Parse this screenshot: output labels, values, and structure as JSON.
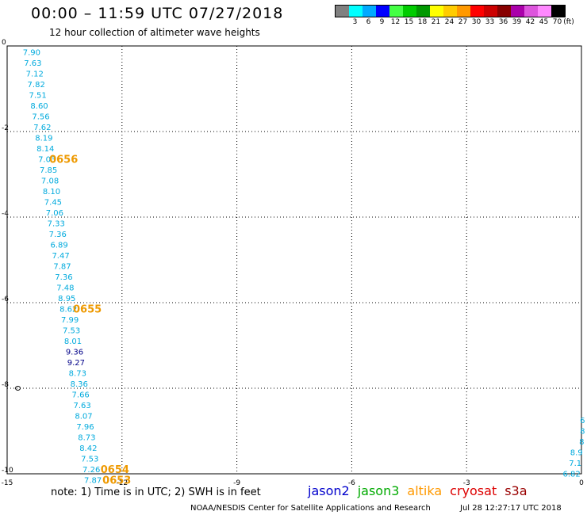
{
  "header": {
    "title": "00:00 – 11:59 UTC 07/27/2018",
    "subtitle": "12 hour collection of altimeter wave heights"
  },
  "legend": {
    "unit": "(ft)",
    "bins": [
      {
        "label": "",
        "color": "#808080"
      },
      {
        "label": "3",
        "color": "#00ffff"
      },
      {
        "label": "6",
        "color": "#00aaff"
      },
      {
        "label": "9",
        "color": "#0000ff"
      },
      {
        "label": "12",
        "color": "#44ff44"
      },
      {
        "label": "15",
        "color": "#00cc00"
      },
      {
        "label": "18",
        "color": "#009900"
      },
      {
        "label": "21",
        "color": "#ffff00"
      },
      {
        "label": "24",
        "color": "#ffcc00"
      },
      {
        "label": "27",
        "color": "#ff9900"
      },
      {
        "label": "30",
        "color": "#ff0000"
      },
      {
        "label": "33",
        "color": "#cc0000"
      },
      {
        "label": "36",
        "color": "#880000"
      },
      {
        "label": "39",
        "color": "#aa00aa"
      },
      {
        "label": "42",
        "color": "#dd55dd"
      },
      {
        "label": "45",
        "color": "#ff88ff"
      },
      {
        "label": "70",
        "color": "#000000"
      }
    ]
  },
  "map": {
    "lon_range": [
      -15,
      0
    ],
    "lat_range": [
      -10,
      0
    ],
    "x_ticks": [
      -15,
      -12,
      -9,
      -6,
      -3,
      0
    ],
    "y_ticks": [
      0,
      -2,
      -4,
      -6,
      -8,
      -10
    ],
    "x_tick_labels": [
      "-15",
      "-12",
      "-9",
      "-6",
      "-3",
      "0"
    ],
    "y_tick_labels": [
      "0",
      "-2",
      "-4",
      "-6",
      "-8",
      "-10"
    ],
    "grid": "dotted",
    "cyan": "#00aadd",
    "blue": "#000088",
    "orange": "#ee9900",
    "track_west": [
      {
        "lon": -14.36,
        "lat": -0.14,
        "label": "7.90",
        "color": "cyan"
      },
      {
        "lon": -14.33,
        "lat": -0.39,
        "label": "7.63",
        "color": "cyan"
      },
      {
        "lon": -14.28,
        "lat": -0.64,
        "label": "7.12",
        "color": "cyan"
      },
      {
        "lon": -14.24,
        "lat": -0.89,
        "label": "7.82",
        "color": "cyan"
      },
      {
        "lon": -14.2,
        "lat": -1.14,
        "label": "7.51",
        "color": "cyan"
      },
      {
        "lon": -14.16,
        "lat": -1.39,
        "label": "8.60",
        "color": "cyan"
      },
      {
        "lon": -14.12,
        "lat": -1.64,
        "label": "7.56",
        "color": "cyan"
      },
      {
        "lon": -14.08,
        "lat": -1.89,
        "label": "7.62",
        "color": "cyan"
      },
      {
        "lon": -14.04,
        "lat": -2.14,
        "label": "8.19",
        "color": "cyan"
      },
      {
        "lon": -14.0,
        "lat": -2.39,
        "label": "8.14",
        "color": "cyan"
      },
      {
        "lon": -13.96,
        "lat": -2.64,
        "label": "7.03",
        "color": "cyan"
      },
      {
        "lon": -13.92,
        "lat": -2.89,
        "label": "7.85",
        "color": "cyan"
      },
      {
        "lon": -13.88,
        "lat": -3.14,
        "label": "7.08",
        "color": "cyan"
      },
      {
        "lon": -13.84,
        "lat": -3.39,
        "label": "8.10",
        "color": "cyan"
      },
      {
        "lon": -13.8,
        "lat": -3.64,
        "label": "7.45",
        "color": "cyan"
      },
      {
        "lon": -13.76,
        "lat": -3.89,
        "label": "7.06",
        "color": "cyan"
      },
      {
        "lon": -13.72,
        "lat": -4.14,
        "label": "7.33",
        "color": "cyan"
      },
      {
        "lon": -13.68,
        "lat": -4.39,
        "label": "7.36",
        "color": "cyan"
      },
      {
        "lon": -13.64,
        "lat": -4.64,
        "label": "6.89",
        "color": "cyan"
      },
      {
        "lon": -13.6,
        "lat": -4.89,
        "label": "7.47",
        "color": "cyan"
      },
      {
        "lon": -13.56,
        "lat": -5.14,
        "label": "7.87",
        "color": "cyan"
      },
      {
        "lon": -13.52,
        "lat": -5.39,
        "label": "7.36",
        "color": "cyan"
      },
      {
        "lon": -13.48,
        "lat": -5.64,
        "label": "7.48",
        "color": "cyan"
      },
      {
        "lon": -13.44,
        "lat": -5.89,
        "label": "8.95",
        "color": "cyan"
      },
      {
        "lon": -13.4,
        "lat": -6.14,
        "label": "8.62",
        "color": "cyan"
      },
      {
        "lon": -13.36,
        "lat": -6.39,
        "label": "7.99",
        "color": "cyan"
      },
      {
        "lon": -13.32,
        "lat": -6.64,
        "label": "7.53",
        "color": "cyan"
      },
      {
        "lon": -13.28,
        "lat": -6.89,
        "label": "8.01",
        "color": "cyan"
      },
      {
        "lon": -13.24,
        "lat": -7.14,
        "label": "9.36",
        "color": "blue"
      },
      {
        "lon": -13.2,
        "lat": -7.39,
        "label": "9.27",
        "color": "blue"
      },
      {
        "lon": -13.16,
        "lat": -7.64,
        "label": "8.73",
        "color": "cyan"
      },
      {
        "lon": -13.12,
        "lat": -7.89,
        "label": "8.36",
        "color": "cyan"
      },
      {
        "lon": -13.08,
        "lat": -8.14,
        "label": "7.66",
        "color": "cyan"
      },
      {
        "lon": -13.04,
        "lat": -8.39,
        "label": "7.63",
        "color": "cyan"
      },
      {
        "lon": -13.0,
        "lat": -8.64,
        "label": "8.07",
        "color": "cyan"
      },
      {
        "lon": -12.96,
        "lat": -8.89,
        "label": "7.96",
        "color": "cyan"
      },
      {
        "lon": -12.92,
        "lat": -9.14,
        "label": "8.73",
        "color": "cyan"
      },
      {
        "lon": -12.88,
        "lat": -9.39,
        "label": "8.42",
        "color": "cyan"
      },
      {
        "lon": -12.84,
        "lat": -9.64,
        "label": "7.53",
        "color": "cyan"
      },
      {
        "lon": -12.8,
        "lat": -9.89,
        "label": "7.26",
        "color": "cyan"
      },
      {
        "lon": -12.76,
        "lat": -10.14,
        "label": "7.87",
        "color": "cyan"
      }
    ],
    "time_labels": [
      {
        "lon": -13.9,
        "lat": -2.64,
        "label": "0656"
      },
      {
        "lon": -13.28,
        "lat": -6.14,
        "label": "0655"
      },
      {
        "lon": -12.56,
        "lat": -9.89,
        "label": "0654"
      },
      {
        "lon": -12.51,
        "lat": -10.14,
        "label": "0653"
      }
    ],
    "track_east": [
      {
        "lon": -0.01,
        "lat": -8.74,
        "label": "6"
      },
      {
        "lon": -0.01,
        "lat": -8.99,
        "label": "8"
      },
      {
        "lon": -0.03,
        "lat": -9.24,
        "label": "8"
      },
      {
        "lon": -0.07,
        "lat": -9.49,
        "label": "8.9"
      },
      {
        "lon": -0.1,
        "lat": -9.74,
        "label": "7.1"
      },
      {
        "lon": -0.13,
        "lat": -9.99,
        "label": "6.82"
      }
    ],
    "land_marker": {
      "lon": -14.72,
      "lat": -8.0
    }
  },
  "footer": {
    "note": "note:  1) Time is in UTC;  2) SWH is in feet",
    "satellites": [
      {
        "name": "jason2",
        "color": "#0000cc"
      },
      {
        "name": "jason3",
        "color": "#00aa00"
      },
      {
        "name": "altika",
        "color": "#ff9900"
      },
      {
        "name": "cryosat",
        "color": "#dd0000"
      },
      {
        "name": "s3a",
        "color": "#990000"
      }
    ],
    "credit": "NOAA/NESDIS Center for Satellite Applications and Research",
    "timestamp": "Jul 28 12:27:17 UTC 2018"
  }
}
